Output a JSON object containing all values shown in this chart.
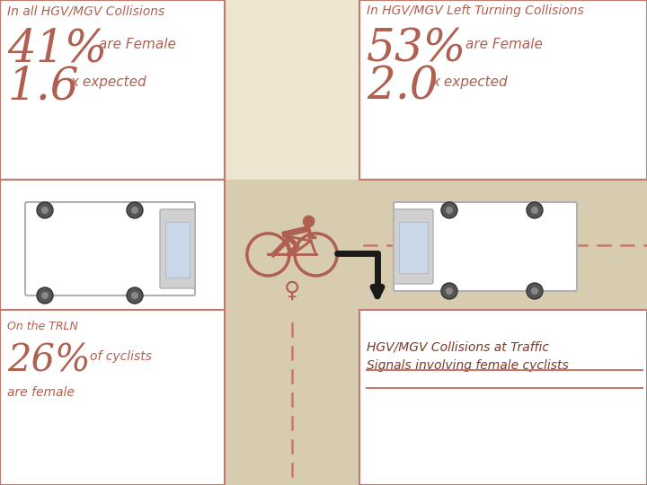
{
  "bg_color": "#ede5d0",
  "road_color": "#ddd0b0",
  "border_color": "#c47a6a",
  "text_color": "#b06050",
  "dark_text": "#7a3a2a",
  "arrow_color": "#1a1a1a",
  "title_left": "In all HGV/MGV Collisions",
  "title_right": "In HGV/MGV Left Turning Collisions",
  "pct_left": "41%",
  "pct_right": "53%",
  "are_female": "are Female",
  "mult_left": "1.6",
  "mult_right": "2.0",
  "x_expected": "x expected",
  "trln_label": "On the TRLN",
  "trln_pct": "26%",
  "trln_sub": "of cyclists",
  "trln_are": "are female",
  "bottom_right_1": "HGV/MGV Collisions at Traffic",
  "bottom_right_2": "Signals involving female cyclists"
}
